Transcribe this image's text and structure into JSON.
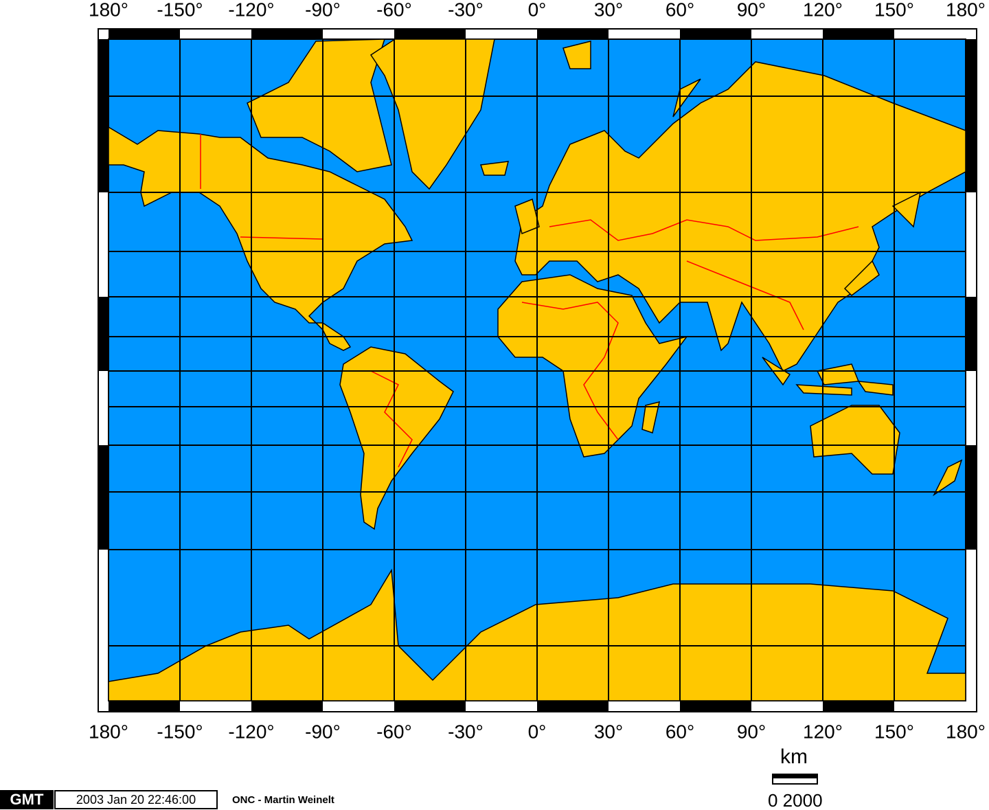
{
  "map": {
    "xticks": [
      {
        "value": -180,
        "label": "180°"
      },
      {
        "value": -150,
        "label": "-150°"
      },
      {
        "value": -120,
        "label": "-120°"
      },
      {
        "value": -90,
        "label": "-90°"
      },
      {
        "value": -60,
        "label": "-60°"
      },
      {
        "value": -30,
        "label": "-30°"
      },
      {
        "value": 0,
        "label": "0°"
      },
      {
        "value": 30,
        "label": "30°"
      },
      {
        "value": 60,
        "label": "60°"
      },
      {
        "value": 90,
        "label": "90°"
      },
      {
        "value": 120,
        "label": "120°"
      },
      {
        "value": 150,
        "label": "150°"
      },
      {
        "value": 180,
        "label": "180°"
      }
    ],
    "footer": {
      "gmt": "GMT",
      "timestamp": "2003 Jan 20 22:46:00",
      "credit": "ONC - Martin Weinelt"
    },
    "scale": {
      "unit": "km",
      "label": "0 2000"
    }
  }
}
